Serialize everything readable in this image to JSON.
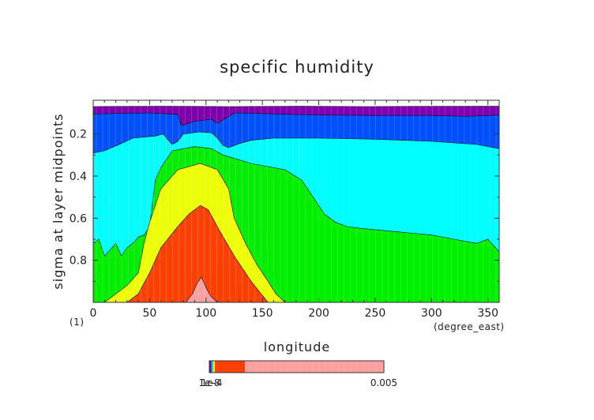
{
  "chart_data": {
    "type": "contour",
    "title": "specific humidity",
    "xlabel": "longitude",
    "ylabel": "sigma at layer midpoints",
    "x_unit": "(degree_east)",
    "y_unit": "(1)",
    "xlim": [
      0,
      360
    ],
    "ylim": [
      0.04,
      1.0
    ],
    "y_axis_inverted": true,
    "x_ticks": [
      0,
      50,
      100,
      150,
      200,
      250,
      300,
      350
    ],
    "y_ticks": [
      0.2,
      0.4,
      0.6,
      0.8
    ],
    "colorbar": {
      "min_label": "1e-8",
      "overlap_label": "1e-4",
      "max_label": "0.005"
    },
    "bands": [
      {
        "level_min": "1e-8",
        "color": "#8000b0",
        "boundary": [
          [
            0,
            0.07
          ],
          [
            60,
            0.068
          ],
          [
            120,
            0.07
          ],
          [
            180,
            0.068
          ],
          [
            240,
            0.07
          ],
          [
            300,
            0.069
          ],
          [
            360,
            0.068
          ]
        ]
      },
      {
        "level_min": "1e-7",
        "color": "#0050ff",
        "boundary": [
          [
            0,
            0.105
          ],
          [
            50,
            0.1
          ],
          [
            75,
            0.107
          ],
          [
            78,
            0.16
          ],
          [
            90,
            0.14
          ],
          [
            105,
            0.13
          ],
          [
            110,
            0.15
          ],
          [
            125,
            0.1
          ],
          [
            200,
            0.11
          ],
          [
            250,
            0.112
          ],
          [
            300,
            0.112
          ],
          [
            330,
            0.116
          ],
          [
            360,
            0.11
          ]
        ]
      },
      {
        "level_min": "1e-6",
        "color": "#00ffff",
        "boundary": [
          [
            0,
            0.29
          ],
          [
            10,
            0.28
          ],
          [
            25,
            0.245
          ],
          [
            35,
            0.22
          ],
          [
            55,
            0.21
          ],
          [
            62,
            0.2
          ],
          [
            65,
            0.22
          ],
          [
            70,
            0.25
          ],
          [
            75,
            0.235
          ],
          [
            80,
            0.2
          ],
          [
            95,
            0.19
          ],
          [
            105,
            0.195
          ],
          [
            110,
            0.22
          ],
          [
            115,
            0.255
          ],
          [
            120,
            0.265
          ],
          [
            130,
            0.245
          ],
          [
            140,
            0.23
          ],
          [
            160,
            0.22
          ],
          [
            200,
            0.22
          ],
          [
            250,
            0.225
          ],
          [
            300,
            0.235
          ],
          [
            340,
            0.25
          ],
          [
            360,
            0.27
          ]
        ]
      },
      {
        "level_min": "1e-5",
        "color": "#00ee00",
        "boundary": [
          [
            0,
            0.72
          ],
          [
            5,
            0.7
          ],
          [
            10,
            0.78
          ],
          [
            15,
            0.75
          ],
          [
            20,
            0.72
          ],
          [
            25,
            0.78
          ],
          [
            30,
            0.74
          ],
          [
            35,
            0.72
          ],
          [
            40,
            0.69
          ],
          [
            45,
            0.68
          ],
          [
            50,
            0.64
          ],
          [
            55,
            0.42
          ],
          [
            60,
            0.36
          ],
          [
            70,
            0.28
          ],
          [
            90,
            0.26
          ],
          [
            105,
            0.27
          ],
          [
            115,
            0.3
          ],
          [
            140,
            0.34
          ],
          [
            170,
            0.37
          ],
          [
            185,
            0.42
          ],
          [
            195,
            0.5
          ],
          [
            205,
            0.58
          ],
          [
            215,
            0.62
          ],
          [
            225,
            0.64
          ],
          [
            240,
            0.65
          ],
          [
            260,
            0.66
          ],
          [
            280,
            0.67
          ],
          [
            300,
            0.68
          ],
          [
            320,
            0.7
          ],
          [
            340,
            0.72
          ],
          [
            350,
            0.7
          ],
          [
            360,
            0.76
          ]
        ]
      },
      {
        "level_min": "1e-4",
        "color": "#eeff00",
        "boundary": [
          [
            10,
            1.0
          ],
          [
            20,
            0.96
          ],
          [
            30,
            0.92
          ],
          [
            40,
            0.86
          ],
          [
            45,
            0.72
          ],
          [
            50,
            0.62
          ],
          [
            60,
            0.46
          ],
          [
            75,
            0.37
          ],
          [
            95,
            0.34
          ],
          [
            110,
            0.37
          ],
          [
            120,
            0.46
          ],
          [
            125,
            0.6
          ],
          [
            135,
            0.72
          ],
          [
            145,
            0.82
          ],
          [
            155,
            0.9
          ],
          [
            162,
            0.96
          ],
          [
            170,
            1.0
          ]
        ]
      },
      {
        "level_min": "0.001",
        "color": "#ff4000",
        "boundary": [
          [
            30,
            1.0
          ],
          [
            40,
            0.96
          ],
          [
            50,
            0.86
          ],
          [
            60,
            0.74
          ],
          [
            75,
            0.64
          ],
          [
            85,
            0.58
          ],
          [
            95,
            0.54
          ],
          [
            102,
            0.56
          ],
          [
            112,
            0.66
          ],
          [
            125,
            0.78
          ],
          [
            140,
            0.9
          ],
          [
            155,
            1.0
          ]
        ]
      },
      {
        "level_min": "0.004",
        "color": "#ffa0a0",
        "boundary": [
          [
            82,
            1.0
          ],
          [
            88,
            0.96
          ],
          [
            92,
            0.91
          ],
          [
            96,
            0.88
          ],
          [
            100,
            0.93
          ],
          [
            104,
            0.97
          ],
          [
            110,
            1.0
          ]
        ]
      }
    ]
  }
}
